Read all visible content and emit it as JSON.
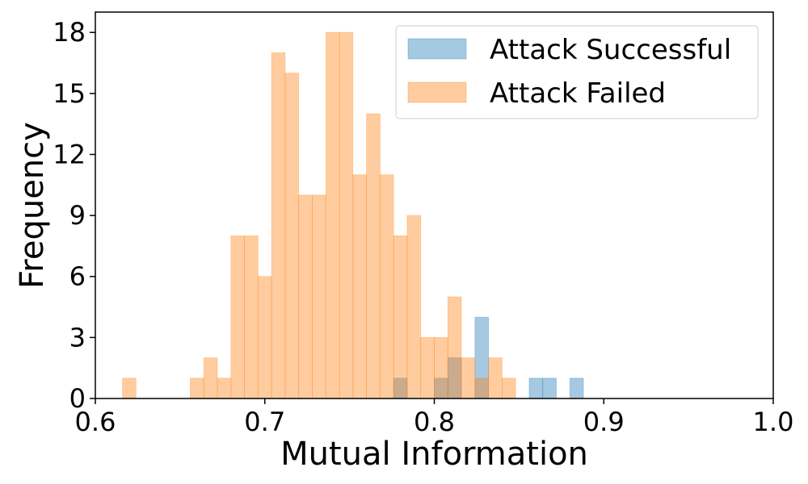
{
  "chart_data": {
    "type": "bar",
    "subtype": "overlaid-histogram",
    "title": "",
    "xlabel": "Mutual Information",
    "ylabel": "Frequency",
    "xlim": [
      0.6,
      1.0
    ],
    "ylim": [
      0,
      19
    ],
    "xticks": [
      0.6,
      0.7,
      0.8,
      0.9,
      1.0
    ],
    "xtick_labels": [
      "0.6",
      "0.7",
      "0.8",
      "0.9",
      "1.0"
    ],
    "yticks": [
      0,
      3,
      6,
      9,
      12,
      15,
      18
    ],
    "ytick_labels": [
      "0",
      "3",
      "6",
      "9",
      "12",
      "15",
      "18"
    ],
    "bin_width": 0.008,
    "grid": false,
    "legend_position": "upper right",
    "series": [
      {
        "name": "Attack Successful",
        "color": "#1f77b4",
        "alpha": 0.4,
        "bins": [
          {
            "x": 0.776,
            "count": 1
          },
          {
            "x": 0.8,
            "count": 1
          },
          {
            "x": 0.808,
            "count": 2
          },
          {
            "x": 0.824,
            "count": 4
          },
          {
            "x": 0.856,
            "count": 1
          },
          {
            "x": 0.864,
            "count": 1
          },
          {
            "x": 0.88,
            "count": 1
          }
        ]
      },
      {
        "name": "Attack Failed",
        "color": "#ff7f0e",
        "alpha": 0.4,
        "bins": [
          {
            "x": 0.616,
            "count": 1
          },
          {
            "x": 0.656,
            "count": 1
          },
          {
            "x": 0.664,
            "count": 2
          },
          {
            "x": 0.672,
            "count": 1
          },
          {
            "x": 0.68,
            "count": 8
          },
          {
            "x": 0.688,
            "count": 8
          },
          {
            "x": 0.696,
            "count": 6
          },
          {
            "x": 0.704,
            "count": 17
          },
          {
            "x": 0.712,
            "count": 16
          },
          {
            "x": 0.72,
            "count": 10
          },
          {
            "x": 0.728,
            "count": 10
          },
          {
            "x": 0.736,
            "count": 18
          },
          {
            "x": 0.744,
            "count": 18
          },
          {
            "x": 0.752,
            "count": 11
          },
          {
            "x": 0.76,
            "count": 14
          },
          {
            "x": 0.768,
            "count": 11
          },
          {
            "x": 0.776,
            "count": 8
          },
          {
            "x": 0.784,
            "count": 9
          },
          {
            "x": 0.792,
            "count": 3
          },
          {
            "x": 0.8,
            "count": 3
          },
          {
            "x": 0.808,
            "count": 5
          },
          {
            "x": 0.816,
            "count": 2
          },
          {
            "x": 0.824,
            "count": 1
          },
          {
            "x": 0.832,
            "count": 2
          },
          {
            "x": 0.84,
            "count": 1
          }
        ]
      }
    ]
  }
}
